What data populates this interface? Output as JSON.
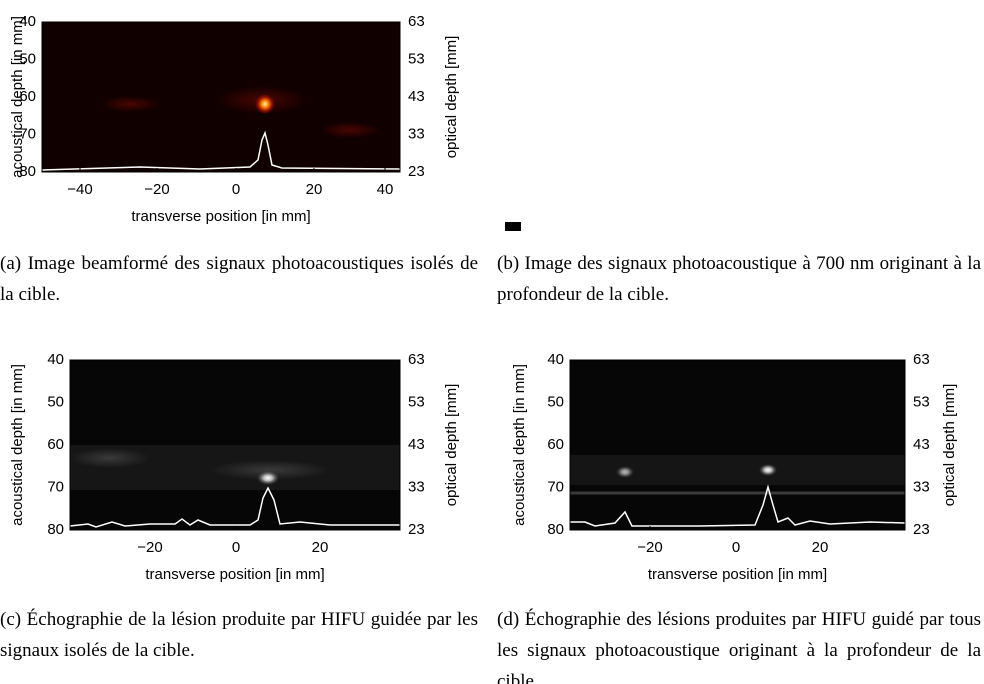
{
  "figures": [
    {
      "ylabel": "acoustical depth [in mm]",
      "y2label": "optical depth [mm]",
      "xlabel": "transverse position [in mm]",
      "xticks": [
        "−40",
        "−20",
        "0",
        "20",
        "40"
      ],
      "yticks": [
        "40",
        "50",
        "60",
        "70",
        "80"
      ],
      "y2ticks": [
        "63",
        "53",
        "43",
        "33",
        "23"
      ],
      "caption": "(a) Image beamformé des signaux photoacoustiques isolés de la cible."
    },
    {
      "caption": "(b) Image des signaux photoacoustique à 700 nm originant à la profondeur de la cible."
    },
    {
      "ylabel": "acoustical depth [in mm]",
      "y2label": "optical depth [mm]",
      "xlabel": "transverse position [in mm]",
      "xticks": [
        "−20",
        "0",
        "20"
      ],
      "yticks": [
        "40",
        "50",
        "60",
        "70",
        "80"
      ],
      "y2ticks": [
        "63",
        "53",
        "43",
        "33",
        "23"
      ],
      "caption": "(c) Échographie de la lésion produite par HIFU guidée par les signaux isolés de la cible."
    },
    {
      "ylabel": "acoustical depth [in mm]",
      "y2label": "optical depth [mm]",
      "xlabel": "transverse position [in mm]",
      "xticks": [
        "−20",
        "0",
        "20"
      ],
      "yticks": [
        "40",
        "50",
        "60",
        "70",
        "80"
      ],
      "y2ticks": [
        "63",
        "53",
        "43",
        "33",
        "23"
      ],
      "caption": "(d) Échographie des lésions produites par HIFU guidé par tous les signaux photoacoustique originant à la profondeur de la cible."
    }
  ]
}
